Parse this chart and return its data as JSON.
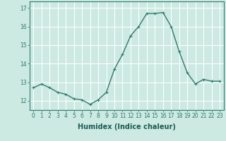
{
  "x": [
    0,
    1,
    2,
    3,
    4,
    5,
    6,
    7,
    8,
    9,
    10,
    11,
    12,
    13,
    14,
    15,
    16,
    17,
    18,
    19,
    20,
    21,
    22,
    23
  ],
  "y": [
    12.7,
    12.9,
    12.7,
    12.45,
    12.35,
    12.1,
    12.05,
    11.8,
    12.05,
    12.45,
    13.7,
    14.5,
    15.5,
    16.0,
    16.7,
    16.7,
    16.75,
    16.0,
    14.65,
    13.5,
    12.9,
    13.15,
    13.05,
    13.05
  ],
  "line_color": "#2e7d6e",
  "marker": "+",
  "marker_size": 3,
  "background_color": "#cce9e2",
  "grid_color": "#ffffff",
  "xlabel": "Humidex (Indice chaleur)",
  "ylabel": "",
  "title": "",
  "ylim": [
    11.5,
    17.35
  ],
  "xlim": [
    -0.5,
    23.5
  ],
  "yticks": [
    12,
    13,
    14,
    15,
    16,
    17
  ],
  "xticks": [
    0,
    1,
    2,
    3,
    4,
    5,
    6,
    7,
    8,
    9,
    10,
    11,
    12,
    13,
    14,
    15,
    16,
    17,
    18,
    19,
    20,
    21,
    22,
    23
  ],
  "tick_fontsize": 5.5,
  "xlabel_fontsize": 7,
  "line_width": 1.0,
  "spine_color": "#2e7d6e"
}
